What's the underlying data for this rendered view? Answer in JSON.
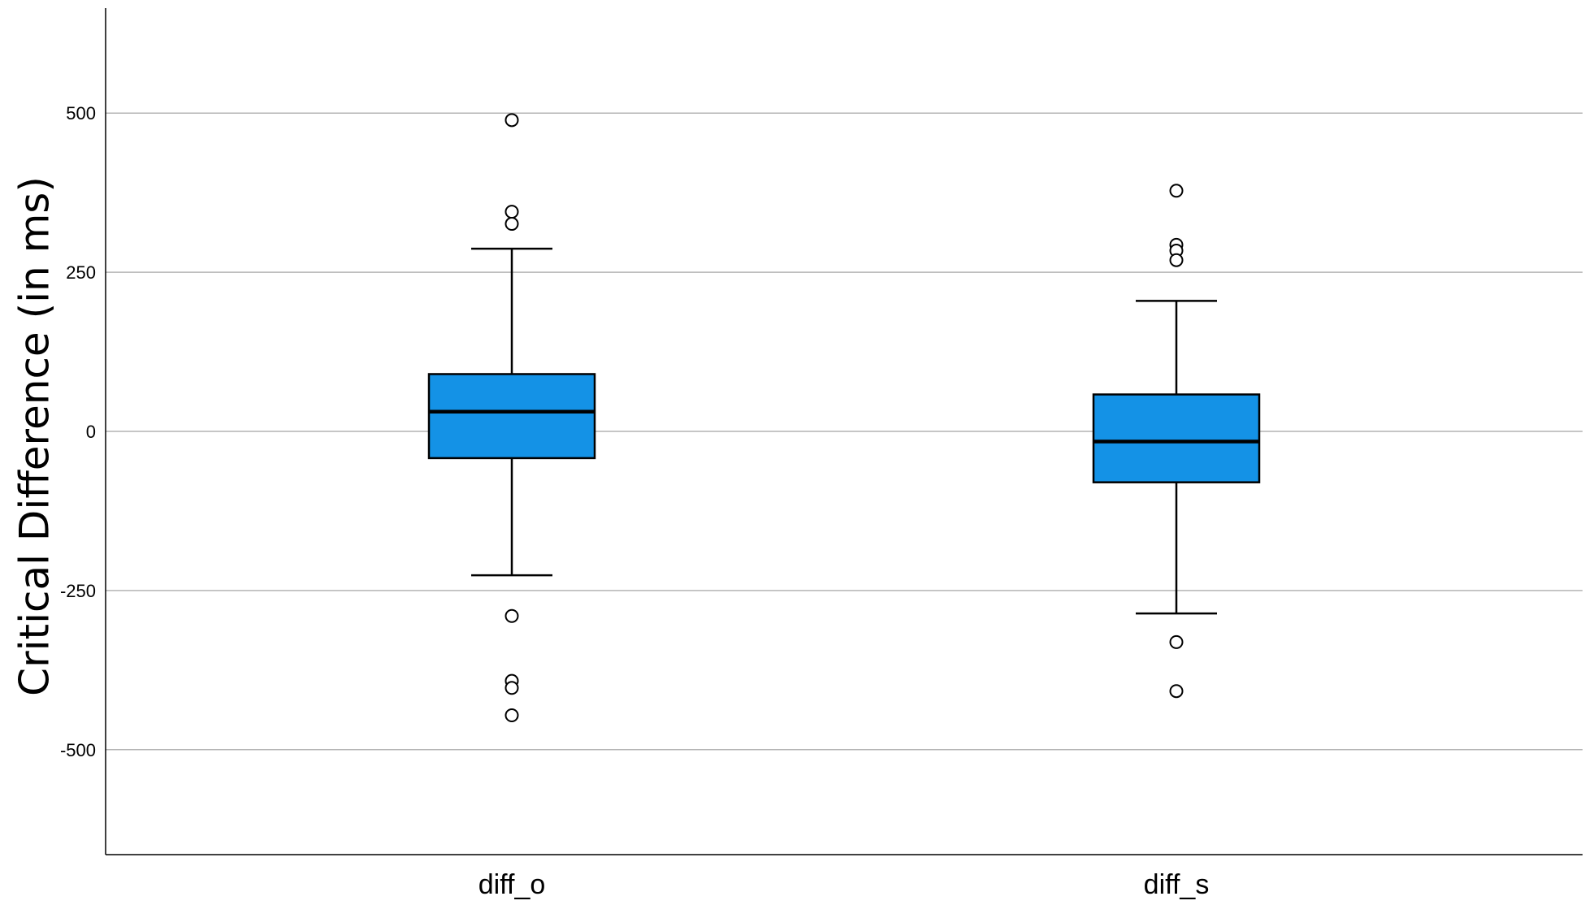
{
  "chart_data": {
    "type": "box",
    "title": "",
    "xlabel": "",
    "ylabel": "Critical Difference (in ms)",
    "ylim": [
      -665,
      665
    ],
    "yticks": [
      500,
      250,
      0,
      -250,
      -500
    ],
    "ytick_labels": [
      "500",
      "250",
      "0",
      "-250",
      "-500"
    ],
    "grid": true,
    "box_color": "#1492e6",
    "categories": [
      "diff_o",
      "diff_s"
    ],
    "boxes": [
      {
        "category": "diff_o",
        "whisker_low": -226,
        "q1": -42,
        "median": 31,
        "q3": 90,
        "whisker_high": 287,
        "outliers": [
          489,
          345,
          326,
          -290,
          -392,
          -403,
          -446
        ]
      },
      {
        "category": "diff_s",
        "whisker_low": -286,
        "q1": -80,
        "median": -16,
        "q3": 58,
        "whisker_high": 205,
        "outliers": [
          378,
          293,
          284,
          269,
          -331,
          -408
        ]
      }
    ]
  }
}
